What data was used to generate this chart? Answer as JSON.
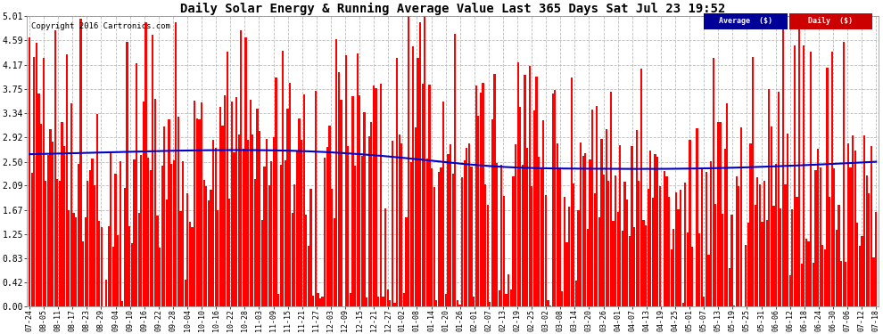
{
  "title": "Daily Solar Energy & Running Average Value Last 365 Days Sat Jul 23 19:52",
  "copyright": "Copyright 2016 Cartronics.com",
  "background_color": "#ffffff",
  "plot_bg_color": "#ffffff",
  "bar_color": "#ff0000",
  "avg_color": "#0000cc",
  "yticks": [
    0.0,
    0.42,
    0.83,
    1.25,
    1.67,
    2.09,
    2.5,
    2.92,
    3.34,
    3.75,
    4.17,
    4.59,
    5.01
  ],
  "ymax": 5.01,
  "legend_avg_bg": "#000099",
  "legend_daily_bg": "#cc0000",
  "legend_avg_text": "Average  ($)",
  "legend_daily_text": "Daily  ($)",
  "xtick_labels": [
    "07-24",
    "08-05",
    "08-11",
    "08-17",
    "08-23",
    "08-29",
    "09-04",
    "09-10",
    "09-16",
    "09-22",
    "09-28",
    "10-04",
    "10-10",
    "10-16",
    "10-22",
    "10-28",
    "11-03",
    "11-09",
    "11-15",
    "11-21",
    "11-27",
    "12-03",
    "12-09",
    "12-15",
    "12-21",
    "12-27",
    "01-02",
    "01-08",
    "01-14",
    "01-20",
    "01-26",
    "02-01",
    "02-07",
    "02-13",
    "02-19",
    "02-25",
    "03-02",
    "03-08",
    "03-14",
    "03-20",
    "03-26",
    "04-01",
    "04-07",
    "04-13",
    "04-19",
    "04-25",
    "05-01",
    "05-07",
    "05-13",
    "05-19",
    "05-25",
    "05-31",
    "06-06",
    "06-12",
    "06-18",
    "06-24",
    "06-30",
    "07-06",
    "07-12",
    "07-18"
  ],
  "avg_curve_x": [
    0,
    40,
    80,
    120,
    160,
    200,
    240,
    280,
    320,
    364
  ],
  "avg_curve_y": [
    2.63,
    2.67,
    2.7,
    2.68,
    2.57,
    2.42,
    2.38,
    2.38,
    2.42,
    2.5
  ]
}
